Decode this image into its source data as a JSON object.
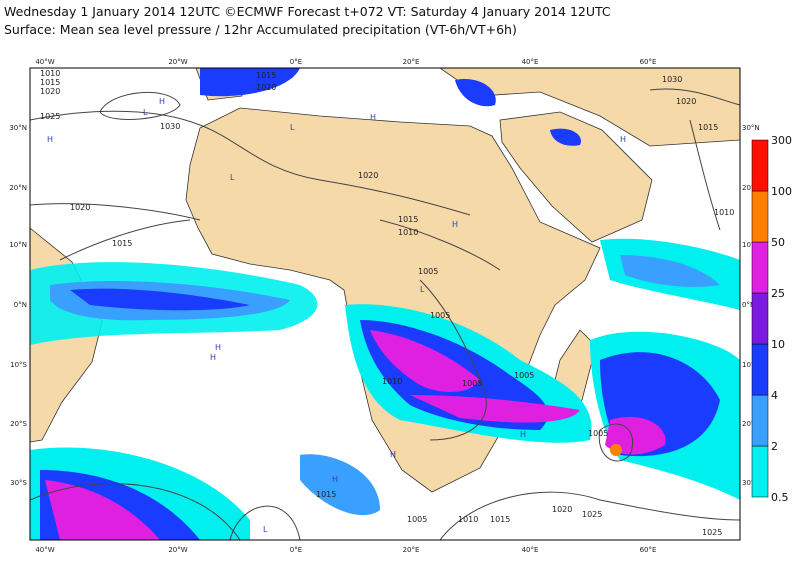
{
  "header": {
    "line1": "Wednesday 1 January 2014 12UTC ©ECMWF Forecast t+072 VT: Saturday 4 January 2014 12UTC",
    "line2": "Surface: Mean sea level pressure / 12hr Accumulated precipitation (VT-6h/VT+6h)"
  },
  "map": {
    "longitude_labels": [
      "40°W",
      "20°W",
      "0°E",
      "20°E",
      "40°E",
      "60°E"
    ],
    "latitude_labels": [
      "30°N",
      "20°N",
      "10°N",
      "0°N",
      "10°S",
      "20°S",
      "30°S"
    ],
    "isobar_labels": [
      "1010",
      "1015",
      "1020",
      "1025",
      "1015",
      "1020",
      "1030",
      "1020",
      "1015",
      "1020",
      "1015",
      "1010",
      "1005",
      "1005",
      "1010",
      "1005",
      "1005",
      "1005",
      "1015",
      "1005",
      "1010",
      "1015",
      "1020",
      "1025",
      "1030",
      "1020",
      "1015",
      "1010",
      "1025"
    ],
    "pressure_centers": [
      "H",
      "L",
      "H",
      "L",
      "H",
      "L",
      "H",
      "L",
      "H",
      "H",
      "H",
      "L",
      "H",
      "H",
      "H"
    ]
  },
  "legend": {
    "levels": [
      0.5,
      2,
      4,
      10,
      25,
      50,
      100,
      300
    ],
    "colors": [
      "#00f0f0",
      "#3aa0ff",
      "#1a3cff",
      "#7a1ae0",
      "#e020e0",
      "#ff8000",
      "#ff1000"
    ]
  }
}
